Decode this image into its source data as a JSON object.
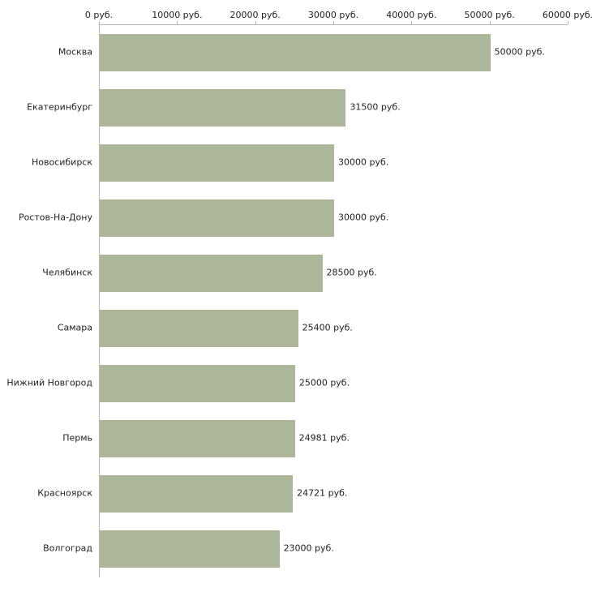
{
  "chart_data": {
    "type": "bar",
    "orientation": "horizontal",
    "title": "",
    "xlabel": "",
    "ylabel": "",
    "categories": [
      "Москва",
      "Екатеринбург",
      "Новосибирск",
      "Ростов-На-Дону",
      "Челябинск",
      "Самара",
      "Нижний Новгород",
      "Пермь",
      "Красноярск",
      "Волгоград"
    ],
    "values": [
      50000,
      31500,
      30000,
      30000,
      28500,
      25400,
      25000,
      24981,
      24721,
      23000
    ],
    "value_labels": [
      "50000 руб.",
      "31500 руб.",
      "30000 руб.",
      "30000 руб.",
      "28500 руб.",
      "25400 руб.",
      "25000 руб.",
      "24981 руб.",
      "24721 руб.",
      "23000 руб."
    ],
    "x_ticks": [
      0,
      10000,
      20000,
      30000,
      40000,
      50000,
      60000
    ],
    "x_tick_labels": [
      "0 руб.",
      "10000 руб.",
      "20000 руб.",
      "30000 руб.",
      "40000 руб.",
      "50000 руб.",
      "60000 руб."
    ],
    "xlim": [
      0,
      60000
    ],
    "grid": false,
    "legend": false,
    "bar_color": "#abb798",
    "axis_color": "#b8b8b8",
    "text_color": "#222222",
    "background_color": "#ffffff"
  }
}
